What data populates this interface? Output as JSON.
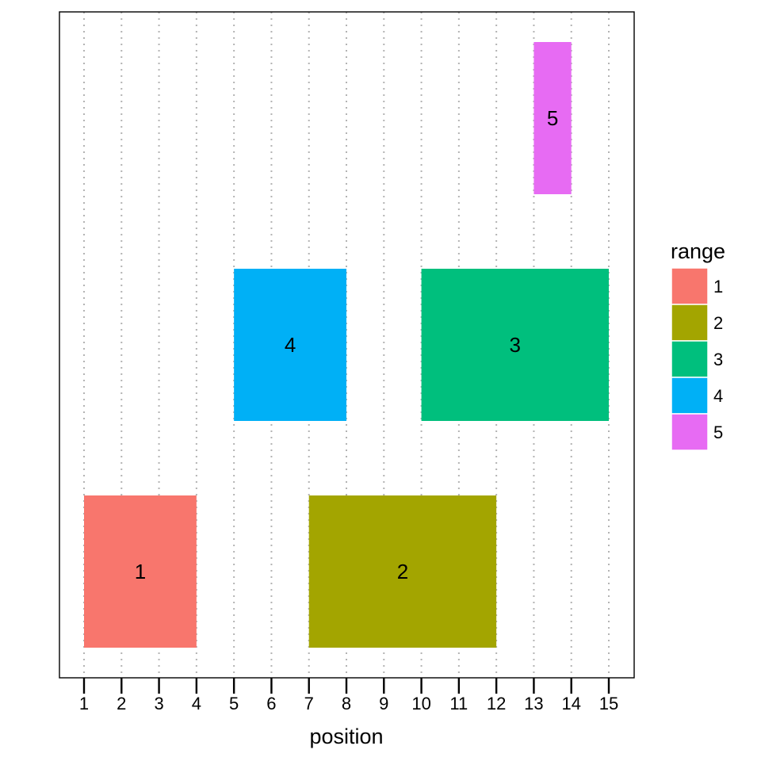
{
  "chart_data": {
    "type": "range",
    "title": "",
    "xlabel": "position",
    "ylabel": "",
    "xlim": [
      0.3,
      15.7
    ],
    "x_ticks": [
      1,
      2,
      3,
      4,
      5,
      6,
      7,
      8,
      9,
      10,
      11,
      12,
      13,
      14,
      15
    ],
    "grid": "vertical dotted at ticks",
    "legend": {
      "title": "range",
      "placement": "right",
      "entries": [
        "1",
        "2",
        "3",
        "4",
        "5"
      ]
    },
    "series": [
      {
        "range": "1",
        "start": 1,
        "end": 4,
        "level": 1,
        "color": "#F8766D"
      },
      {
        "range": "2",
        "start": 7,
        "end": 12,
        "level": 1,
        "color": "#A3A500"
      },
      {
        "range": "3",
        "start": 10,
        "end": 15,
        "level": 2,
        "color": "#00BF7D"
      },
      {
        "range": "4",
        "start": 5,
        "end": 8,
        "level": 2,
        "color": "#00B0F6"
      },
      {
        "range": "5",
        "start": 13,
        "end": 14,
        "level": 3,
        "color": "#E76BF3"
      }
    ]
  }
}
